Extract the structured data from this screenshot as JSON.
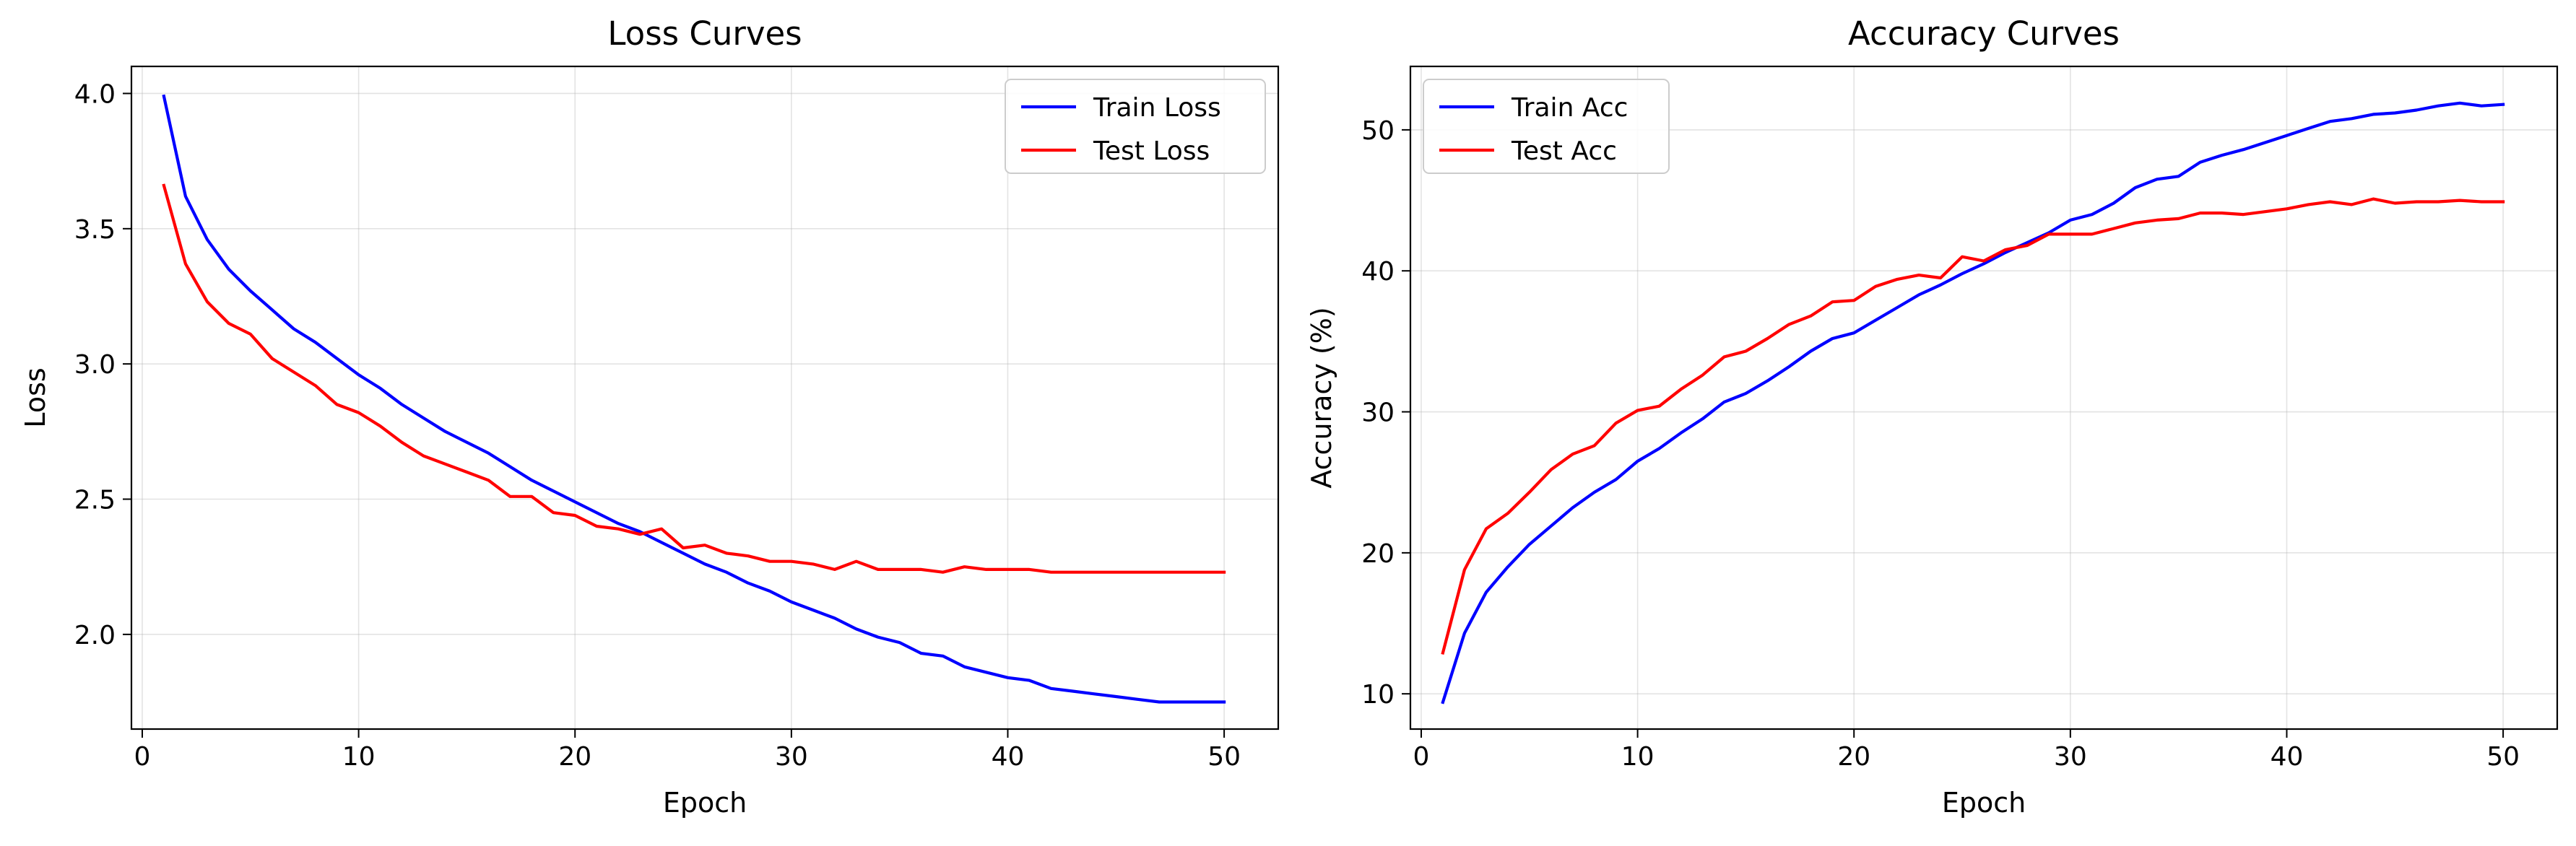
{
  "chart_data": [
    {
      "type": "line",
      "title": "Loss Curves",
      "xlabel": "Epoch",
      "ylabel": "Loss",
      "xlim": [
        -0.5,
        52.5
      ],
      "ylim": [
        1.65,
        4.1
      ],
      "xticks": [
        0,
        10,
        20,
        30,
        40,
        50
      ],
      "yticks": [
        2.0,
        2.5,
        3.0,
        3.5,
        4.0
      ],
      "ytick_decimals": 1,
      "grid": true,
      "legend": "top-right",
      "series": [
        {
          "name": "Train Loss",
          "color": "#0000ff",
          "x": [
            1,
            2,
            3,
            4,
            5,
            6,
            7,
            8,
            9,
            10,
            11,
            12,
            13,
            14,
            15,
            16,
            17,
            18,
            19,
            20,
            21,
            22,
            23,
            24,
            25,
            26,
            27,
            28,
            29,
            30,
            31,
            32,
            33,
            34,
            35,
            36,
            37,
            38,
            39,
            40,
            41,
            42,
            43,
            44,
            45,
            46,
            47,
            48,
            49,
            50
          ],
          "values": [
            3.99,
            3.62,
            3.46,
            3.35,
            3.27,
            3.2,
            3.13,
            3.08,
            3.02,
            2.96,
            2.91,
            2.85,
            2.8,
            2.75,
            2.71,
            2.67,
            2.62,
            2.57,
            2.53,
            2.49,
            2.45,
            2.41,
            2.38,
            2.34,
            2.3,
            2.26,
            2.23,
            2.19,
            2.16,
            2.12,
            2.09,
            2.06,
            2.02,
            1.99,
            1.97,
            1.93,
            1.92,
            1.88,
            1.86,
            1.84,
            1.83,
            1.8,
            1.79,
            1.78,
            1.77,
            1.76,
            1.75,
            1.75,
            1.75,
            1.75
          ]
        },
        {
          "name": "Test Loss",
          "color": "#ff0000",
          "x": [
            1,
            2,
            3,
            4,
            5,
            6,
            7,
            8,
            9,
            10,
            11,
            12,
            13,
            14,
            15,
            16,
            17,
            18,
            19,
            20,
            21,
            22,
            23,
            24,
            25,
            26,
            27,
            28,
            29,
            30,
            31,
            32,
            33,
            34,
            35,
            36,
            37,
            38,
            39,
            40,
            41,
            42,
            43,
            44,
            45,
            46,
            47,
            48,
            49,
            50
          ],
          "values": [
            3.66,
            3.37,
            3.23,
            3.15,
            3.11,
            3.02,
            2.97,
            2.92,
            2.85,
            2.82,
            2.77,
            2.71,
            2.66,
            2.63,
            2.6,
            2.57,
            2.51,
            2.51,
            2.45,
            2.44,
            2.4,
            2.39,
            2.37,
            2.39,
            2.32,
            2.33,
            2.3,
            2.29,
            2.27,
            2.27,
            2.26,
            2.24,
            2.27,
            2.24,
            2.24,
            2.24,
            2.23,
            2.25,
            2.24,
            2.24,
            2.24,
            2.23,
            2.23,
            2.23,
            2.23,
            2.23,
            2.23,
            2.23,
            2.23,
            2.23
          ]
        }
      ]
    },
    {
      "type": "line",
      "title": "Accuracy Curves",
      "xlabel": "Epoch",
      "ylabel": "Accuracy (%)",
      "xlim": [
        -0.5,
        52.5
      ],
      "ylim": [
        7.5,
        54.5
      ],
      "xticks": [
        0,
        10,
        20,
        30,
        40,
        50
      ],
      "yticks": [
        10,
        20,
        30,
        40,
        50
      ],
      "ytick_decimals": 0,
      "grid": true,
      "legend": "top-left",
      "series": [
        {
          "name": "Train Acc",
          "color": "#0000ff",
          "x": [
            1,
            2,
            3,
            4,
            5,
            6,
            7,
            8,
            9,
            10,
            11,
            12,
            13,
            14,
            15,
            16,
            17,
            18,
            19,
            20,
            21,
            22,
            23,
            24,
            25,
            26,
            27,
            28,
            29,
            30,
            31,
            32,
            33,
            34,
            35,
            36,
            37,
            38,
            39,
            40,
            41,
            42,
            43,
            44,
            45,
            46,
            47,
            48,
            49,
            50
          ],
          "values": [
            9.4,
            14.3,
            17.2,
            19.0,
            20.6,
            21.9,
            23.2,
            24.3,
            25.2,
            26.5,
            27.4,
            28.5,
            29.5,
            30.7,
            31.3,
            32.2,
            33.2,
            34.3,
            35.2,
            35.6,
            36.5,
            37.4,
            38.3,
            39.0,
            39.8,
            40.5,
            41.3,
            42.0,
            42.7,
            43.6,
            44.0,
            44.8,
            45.9,
            46.5,
            46.7,
            47.7,
            48.2,
            48.6,
            49.1,
            49.6,
            50.1,
            50.6,
            50.8,
            51.1,
            51.2,
            51.4,
            51.7,
            51.9,
            51.7,
            51.8
          ]
        },
        {
          "name": "Test Acc",
          "color": "#ff0000",
          "x": [
            1,
            2,
            3,
            4,
            5,
            6,
            7,
            8,
            9,
            10,
            11,
            12,
            13,
            14,
            15,
            16,
            17,
            18,
            19,
            20,
            21,
            22,
            23,
            24,
            25,
            26,
            27,
            28,
            29,
            30,
            31,
            32,
            33,
            34,
            35,
            36,
            37,
            38,
            39,
            40,
            41,
            42,
            43,
            44,
            45,
            46,
            47,
            48,
            49,
            50
          ],
          "values": [
            12.9,
            18.8,
            21.7,
            22.8,
            24.3,
            25.9,
            27.0,
            27.6,
            29.2,
            30.1,
            30.4,
            31.6,
            32.6,
            33.9,
            34.3,
            35.2,
            36.2,
            36.8,
            37.8,
            37.9,
            38.9,
            39.4,
            39.7,
            39.5,
            41.0,
            40.7,
            41.5,
            41.8,
            42.6,
            42.6,
            42.6,
            43.0,
            43.4,
            43.6,
            43.7,
            44.1,
            44.1,
            44.0,
            44.2,
            44.4,
            44.7,
            44.9,
            44.7,
            45.1,
            44.8,
            44.9,
            44.9,
            45.0,
            44.9,
            44.9
          ]
        }
      ]
    }
  ]
}
